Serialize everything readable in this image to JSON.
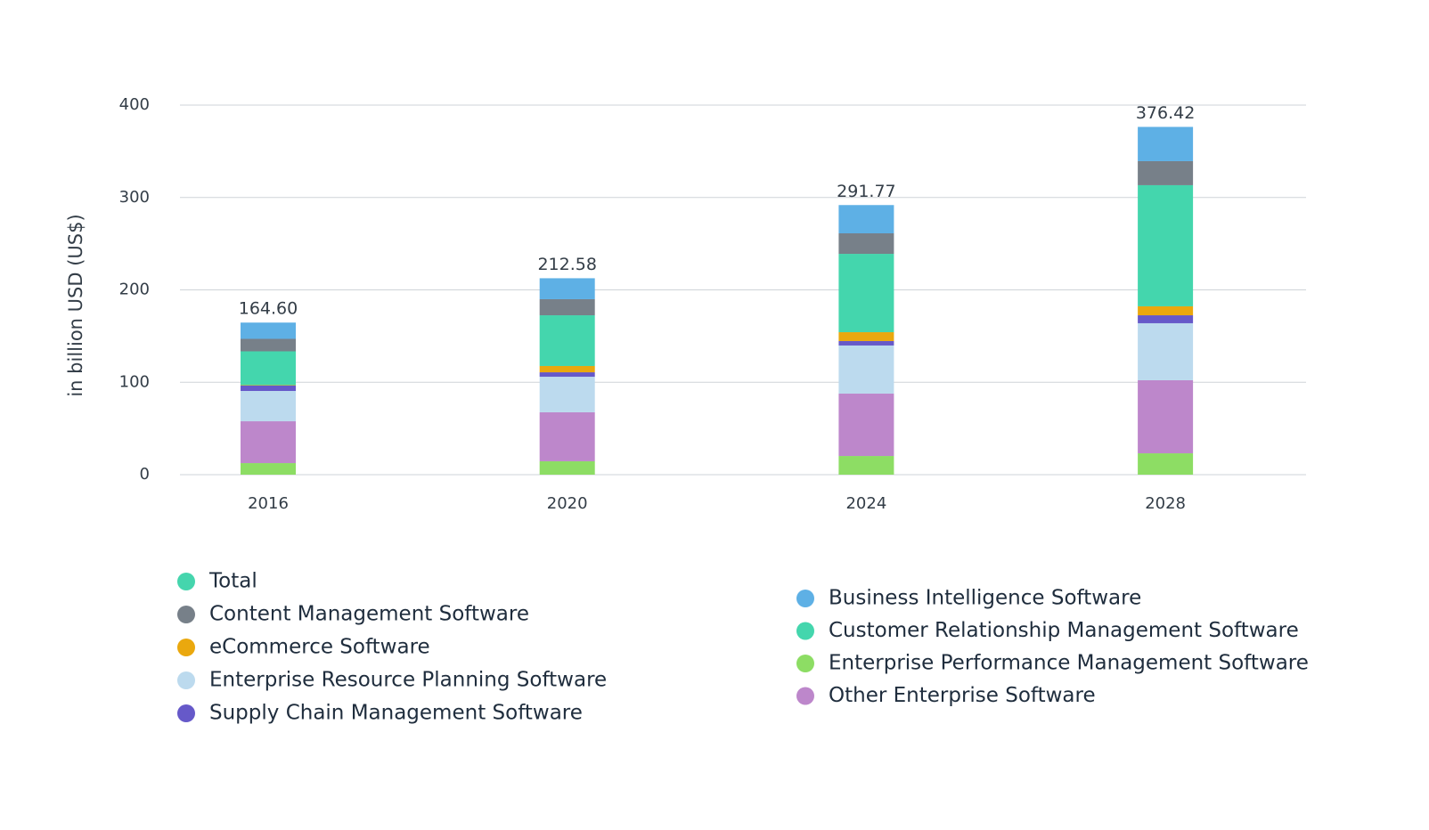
{
  "chart_data": {
    "type": "stacked-bar",
    "y_axis_label": "in billion USD (US$)",
    "categories": [
      "2016",
      "2020",
      "2024",
      "2028"
    ],
    "ylim": [
      0,
      400
    ],
    "yticks": [
      0,
      100,
      200,
      300,
      400
    ],
    "grid": true,
    "totals": {
      "name": "Total",
      "color": "#45d5ad",
      "values": [
        164.6,
        212.58,
        291.77,
        376.42
      ],
      "value_labels": [
        "164.60",
        "212.58",
        "291.77",
        "376.42"
      ]
    },
    "series": [
      {
        "name": "Content Management Software",
        "color": "#778089",
        "values": [
          13.5,
          17.4,
          22.2,
          26
        ]
      },
      {
        "name": "eCommerce Software",
        "color": "#eaa80e",
        "values": [
          0.5,
          6.8,
          9.6,
          9.7
        ]
      },
      {
        "name": "Enterprise Resource Planning Software",
        "color": "#bcdaee",
        "values": [
          32.8,
          38.5,
          52.1,
          61.7
        ]
      },
      {
        "name": "Supply Chain Management Software",
        "color": "#6659c9",
        "values": [
          5.8,
          4.8,
          4.8,
          8.6
        ]
      },
      {
        "name": "Business Intelligence Software",
        "color": "#5eb0e5",
        "values": [
          17.6,
          22.7,
          30.6,
          37.1
        ]
      },
      {
        "name": "Customer Relationship Management Software",
        "color": "#44d6ad",
        "values": [
          36.6,
          54.9,
          84.8,
          131.1
        ]
      },
      {
        "name": "Enterprise Performance Management Software",
        "color": "#8ddd64",
        "values": [
          12.5,
          14.5,
          20.2,
          23.1
        ]
      },
      {
        "name": "Other Enterprise Software",
        "color": "#bd87cb",
        "values": [
          45.3,
          53,
          67.5,
          79.1
        ]
      }
    ]
  }
}
